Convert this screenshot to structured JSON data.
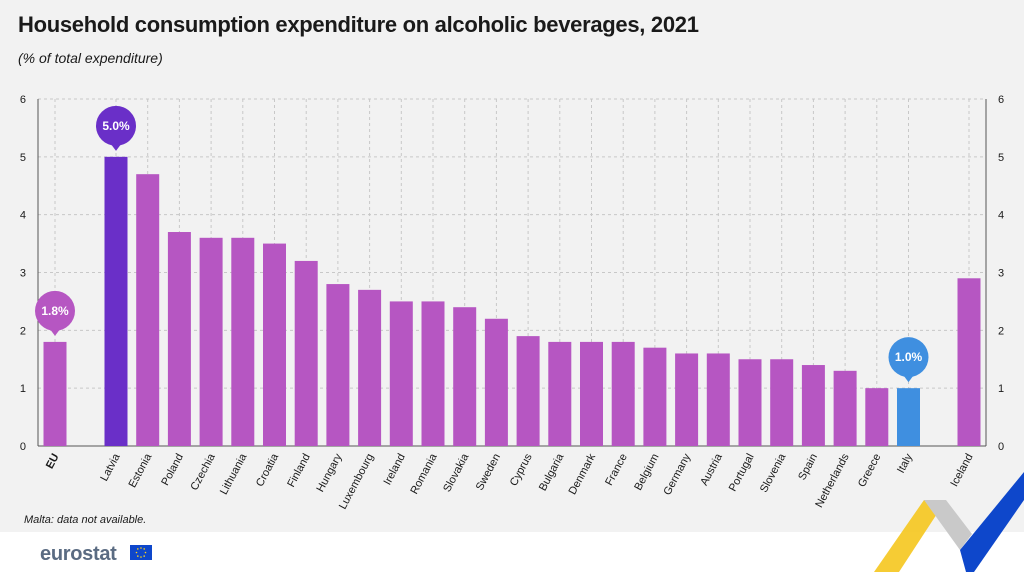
{
  "title": "Household consumption expenditure on alcoholic beverages, 2021",
  "subtitle": "(% of total expenditure)",
  "note": "Malta: data not available.",
  "footer": {
    "logo": "eurostat"
  },
  "colors": {
    "default": "#b656c2",
    "highlight_max": "#6a2fc8",
    "highlight_min": "#3f8fe0",
    "grid": "#c8c8c8",
    "axis": "#555555"
  },
  "chart_data": {
    "type": "bar",
    "title": "Household consumption expenditure on alcoholic beverages, 2021",
    "subtitle": "(% of total expenditure)",
    "xlabel": "",
    "ylabel": "",
    "ylim": [
      0,
      6
    ],
    "yticks": [
      0,
      1,
      2,
      3,
      4,
      5,
      6
    ],
    "grid": true,
    "categories": [
      "EU",
      "Latvia",
      "Estonia",
      "Poland",
      "Czechia",
      "Lithuania",
      "Croatia",
      "Finland",
      "Hungary",
      "Luxembourg",
      "Ireland",
      "Romania",
      "Slovakia",
      "Sweden",
      "Cyprus",
      "Bulgaria",
      "Denmark",
      "France",
      "Belgium",
      "Germany",
      "Austria",
      "Portugal",
      "Slovenia",
      "Spain",
      "Netherlands",
      "Greece",
      "Italy",
      "Iceland"
    ],
    "values": [
      1.8,
      5.0,
      4.7,
      3.7,
      3.6,
      3.6,
      3.5,
      3.2,
      2.8,
      2.7,
      2.5,
      2.5,
      2.4,
      2.2,
      1.9,
      1.8,
      1.8,
      1.8,
      1.7,
      1.6,
      1.6,
      1.5,
      1.5,
      1.4,
      1.3,
      1.0,
      1.0,
      2.9
    ],
    "callouts": [
      {
        "category": "EU",
        "label": "1.8%"
      },
      {
        "category": "Latvia",
        "label": "5.0%"
      },
      {
        "category": "Italy",
        "label": "1.0%"
      }
    ]
  }
}
